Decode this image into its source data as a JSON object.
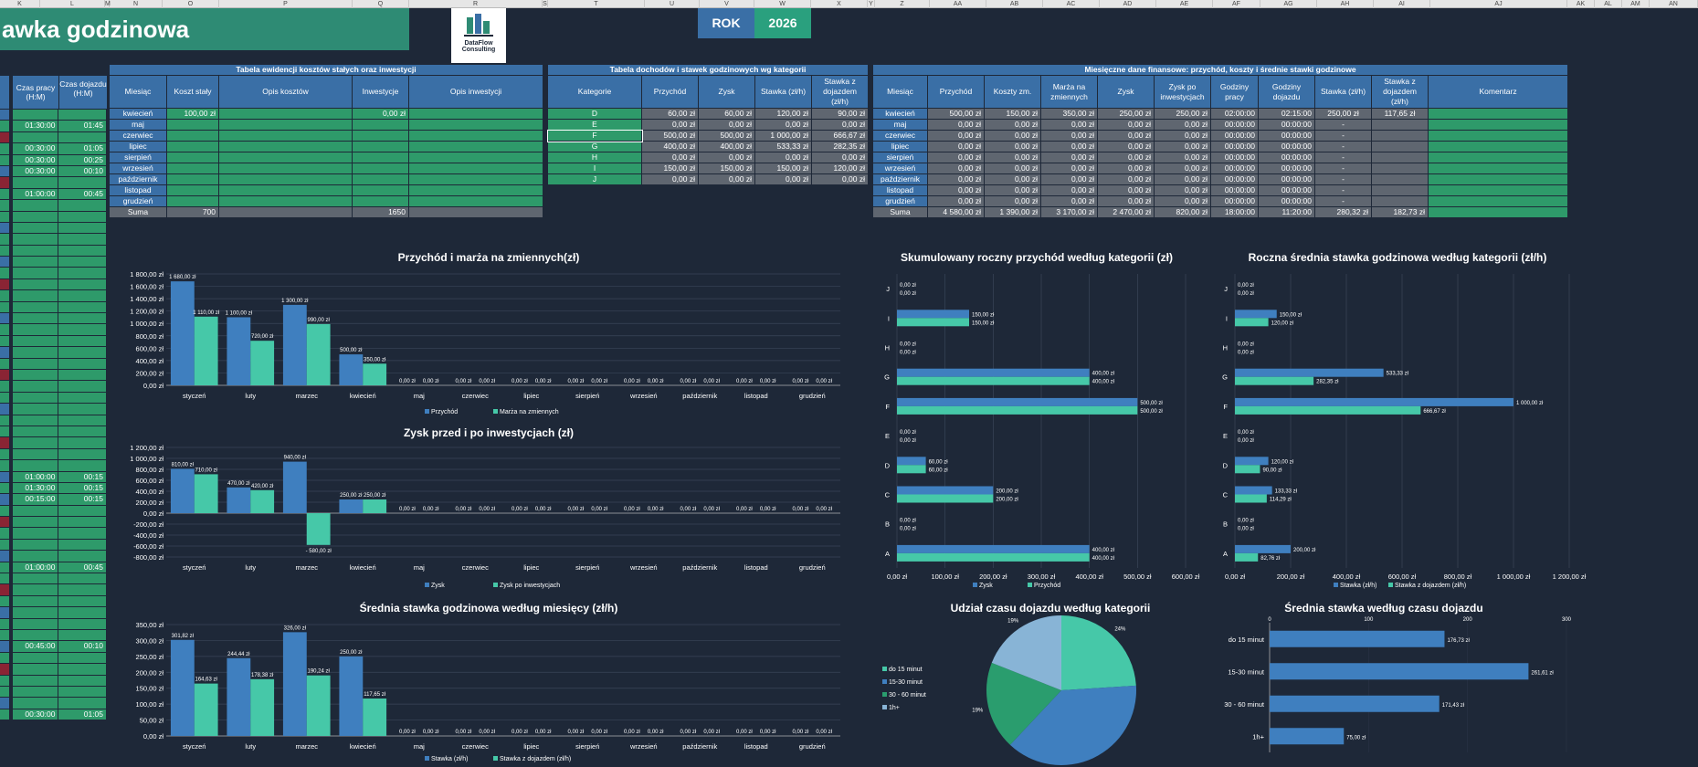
{
  "column_letters": [
    "K",
    "L",
    "M",
    "N",
    "O",
    "P",
    "Q",
    "R",
    "S",
    "T",
    "U",
    "V",
    "W",
    "X",
    "Y",
    "Z",
    "AA",
    "AB",
    "AC",
    "AD",
    "AE",
    "AF",
    "AG",
    "AH",
    "AI",
    "AJ",
    "AK",
    "AL",
    "AM",
    "AN"
  ],
  "title": "awka godzinowa",
  "logo": {
    "line1": "DataFlow",
    "line2": "Consulting"
  },
  "rok": {
    "label": "ROK",
    "value": "2026"
  },
  "left_cols": {
    "h1": "Czas pracy (H:M)",
    "h2": "Czas dojazdu (H:M)"
  },
  "left_rows": [
    {
      "a": "",
      "b": "",
      "c": "blue"
    },
    {
      "a": "01:30:00",
      "b": "01:45",
      "c": "green"
    },
    {
      "a": "",
      "b": "",
      "c": "red"
    },
    {
      "a": "00:30:00",
      "b": "01:05",
      "c": "green"
    },
    {
      "a": "00:30:00",
      "b": "00:25",
      "c": "green"
    },
    {
      "a": "00:30:00",
      "b": "00:10",
      "c": "blue"
    },
    {
      "a": "",
      "b": "",
      "c": "red"
    },
    {
      "a": "01:00:00",
      "b": "00:45",
      "c": "green"
    },
    {
      "a": "",
      "b": "",
      "c": "green"
    },
    {
      "a": "",
      "b": "",
      "c": "green"
    },
    {
      "a": "",
      "b": "",
      "c": "blue"
    },
    {
      "a": "",
      "b": "",
      "c": "green"
    },
    {
      "a": "",
      "b": "",
      "c": "green"
    },
    {
      "a": "",
      "b": "",
      "c": "blue"
    },
    {
      "a": "",
      "b": "",
      "c": "green"
    },
    {
      "a": "",
      "b": "",
      "c": "red"
    },
    {
      "a": "",
      "b": "",
      "c": "green"
    },
    {
      "a": "",
      "b": "",
      "c": "green"
    },
    {
      "a": "",
      "b": "",
      "c": "blue"
    },
    {
      "a": "",
      "b": "",
      "c": "green"
    },
    {
      "a": "",
      "b": "",
      "c": "green"
    },
    {
      "a": "",
      "b": "",
      "c": "blue"
    },
    {
      "a": "",
      "b": "",
      "c": "green"
    },
    {
      "a": "",
      "b": "",
      "c": "red"
    },
    {
      "a": "",
      "b": "",
      "c": "green"
    },
    {
      "a": "",
      "b": "",
      "c": "green"
    },
    {
      "a": "",
      "b": "",
      "c": "blue"
    },
    {
      "a": "",
      "b": "",
      "c": "green"
    },
    {
      "a": "",
      "b": "",
      "c": "green"
    },
    {
      "a": "",
      "b": "",
      "c": "red"
    },
    {
      "a": "",
      "b": "",
      "c": "green"
    },
    {
      "a": "",
      "b": "",
      "c": "green"
    },
    {
      "a": "01:00:00",
      "b": "00:15",
      "c": "blue"
    },
    {
      "a": "01:30:00",
      "b": "00:15",
      "c": "green"
    },
    {
      "a": "00:15:00",
      "b": "00:15",
      "c": "blue"
    },
    {
      "a": "",
      "b": "",
      "c": "green"
    },
    {
      "a": "",
      "b": "",
      "c": "red"
    },
    {
      "a": "",
      "b": "",
      "c": "green"
    },
    {
      "a": "",
      "b": "",
      "c": "green"
    },
    {
      "a": "",
      "b": "",
      "c": "blue"
    },
    {
      "a": "01:00:00",
      "b": "00:45",
      "c": "green"
    },
    {
      "a": "",
      "b": "",
      "c": "green"
    },
    {
      "a": "",
      "b": "",
      "c": "red"
    },
    {
      "a": "",
      "b": "",
      "c": "green"
    },
    {
      "a": "",
      "b": "",
      "c": "blue"
    },
    {
      "a": "",
      "b": "",
      "c": "green"
    },
    {
      "a": "",
      "b": "",
      "c": "green"
    },
    {
      "a": "00:45:00",
      "b": "00:10",
      "c": "blue"
    },
    {
      "a": "",
      "b": "",
      "c": "green"
    },
    {
      "a": "",
      "b": "",
      "c": "red"
    },
    {
      "a": "",
      "b": "",
      "c": "green"
    },
    {
      "a": "",
      "b": "",
      "c": "green"
    },
    {
      "a": "",
      "b": "",
      "c": "blue"
    },
    {
      "a": "00:30:00",
      "b": "01:05",
      "c": "green"
    }
  ],
  "t1": {
    "caption": "Tabela ewidencji kosztów stałych oraz inwestycji",
    "headers": [
      "Miesiąc",
      "Koszt stały",
      "Opis kosztów",
      "Inwestycje",
      "Opis inwestycji"
    ],
    "rows": [
      [
        "kwiecień",
        "100,00 zł",
        "",
        "0,00 zł",
        ""
      ],
      [
        "maj",
        "",
        "",
        "",
        ""
      ],
      [
        "czerwiec",
        "",
        "",
        "",
        ""
      ],
      [
        "lipiec",
        "",
        "",
        "",
        ""
      ],
      [
        "sierpień",
        "",
        "",
        "",
        ""
      ],
      [
        "wrzesień",
        "",
        "",
        "",
        ""
      ],
      [
        "październik",
        "",
        "",
        "",
        ""
      ],
      [
        "listopad",
        "",
        "",
        "",
        ""
      ],
      [
        "grudzień",
        "",
        "",
        "",
        ""
      ]
    ],
    "sum": [
      "Suma",
      "700",
      "",
      "1650",
      ""
    ]
  },
  "t2": {
    "caption": "Tabela dochodów i stawek godzinowych wg kategorii",
    "headers": [
      "Kategorie",
      "Przychód",
      "Zysk",
      "Stawka (zł/h)",
      "Stawka z dojazdem (zł/h)"
    ],
    "rows": [
      [
        "D",
        "60,00 zł",
        "60,00 zł",
        "120,00 zł",
        "90,00 zł"
      ],
      [
        "E",
        "0,00 zł",
        "0,00 zł",
        "0,00 zł",
        "0,00 zł"
      ],
      [
        "F",
        "500,00 zł",
        "500,00 zł",
        "1 000,00 zł",
        "666,67 zł"
      ],
      [
        "G",
        "400,00 zł",
        "400,00 zł",
        "533,33 zł",
        "282,35 zł"
      ],
      [
        "H",
        "0,00 zł",
        "0,00 zł",
        "0,00 zł",
        "0,00 zł"
      ],
      [
        "I",
        "150,00 zł",
        "150,00 zł",
        "150,00 zł",
        "120,00 zł"
      ],
      [
        "J",
        "0,00 zł",
        "0,00 zł",
        "0,00 zł",
        "0,00 zł"
      ]
    ]
  },
  "t3": {
    "caption": "Miesięczne dane finansowe: przychód, koszty i średnie stawki godzinowe",
    "headers": [
      "Miesiąc",
      "Przychód",
      "Koszty zm.",
      "Marża na zmiennych",
      "Zysk",
      "Zysk po inwestycjach",
      "Godziny pracy",
      "Godziny dojazdu",
      "Stawka (zł/h)",
      "Stawka z dojazdem (zł/h)",
      "Komentarz"
    ],
    "rows": [
      [
        "kwiecień",
        "500,00 zł",
        "150,00 zł",
        "350,00 zł",
        "250,00 zł",
        "250,00 zł",
        "02:00:00",
        "02:15:00",
        "250,00 zł",
        "117,65 zł",
        ""
      ],
      [
        "maj",
        "0,00 zł",
        "0,00 zł",
        "0,00 zł",
        "0,00 zł",
        "0,00 zł",
        "00:00:00",
        "00:00:00",
        "-",
        "",
        ""
      ],
      [
        "czerwiec",
        "0,00 zł",
        "0,00 zł",
        "0,00 zł",
        "0,00 zł",
        "0,00 zł",
        "00:00:00",
        "00:00:00",
        "-",
        "",
        ""
      ],
      [
        "lipiec",
        "0,00 zł",
        "0,00 zł",
        "0,00 zł",
        "0,00 zł",
        "0,00 zł",
        "00:00:00",
        "00:00:00",
        "-",
        "",
        ""
      ],
      [
        "sierpień",
        "0,00 zł",
        "0,00 zł",
        "0,00 zł",
        "0,00 zł",
        "0,00 zł",
        "00:00:00",
        "00:00:00",
        "-",
        "",
        ""
      ],
      [
        "wrzesień",
        "0,00 zł",
        "0,00 zł",
        "0,00 zł",
        "0,00 zł",
        "0,00 zł",
        "00:00:00",
        "00:00:00",
        "-",
        "",
        ""
      ],
      [
        "październik",
        "0,00 zł",
        "0,00 zł",
        "0,00 zł",
        "0,00 zł",
        "0,00 zł",
        "00:00:00",
        "00:00:00",
        "-",
        "",
        ""
      ],
      [
        "listopad",
        "0,00 zł",
        "0,00 zł",
        "0,00 zł",
        "0,00 zł",
        "0,00 zł",
        "00:00:00",
        "00:00:00",
        "-",
        "",
        ""
      ],
      [
        "grudzień",
        "0,00 zł",
        "0,00 zł",
        "0,00 zł",
        "0,00 zł",
        "0,00 zł",
        "00:00:00",
        "00:00:00",
        "-",
        "",
        ""
      ]
    ],
    "sum": [
      "Suma",
      "4 580,00 zł",
      "1 390,00 zł",
      "3 170,00 zł",
      "2 470,00 zł",
      "820,00 zł",
      "18:00:00",
      "11:20:00",
      "280,32 zł",
      "182,73 zł",
      ""
    ]
  },
  "colors": {
    "blue": "#3f7fbf",
    "green": "#46c8a8",
    "dgreen": "#2a9d6e",
    "lblue": "#88b4d6"
  },
  "chart_data": [
    {
      "id": "c1",
      "type": "bar",
      "title": "Przychód i marża na zmiennych(zł)",
      "categories": [
        "styczeń",
        "luty",
        "marzec",
        "kwiecień",
        "maj",
        "czerwiec",
        "lipiec",
        "sierpień",
        "wrzesień",
        "październik",
        "listopad",
        "grudzień"
      ],
      "series": [
        {
          "name": "Przychód",
          "values": [
            1680,
            1100,
            1300,
            500,
            0,
            0,
            0,
            0,
            0,
            0,
            0,
            0
          ]
        },
        {
          "name": "Marża na zmiennych",
          "values": [
            1110,
            720,
            990,
            350,
            0,
            0,
            0,
            0,
            0,
            0,
            0,
            0
          ]
        }
      ],
      "ticks": [
        "0,00 zł",
        "200,00 zł",
        "400,00 zł",
        "600,00 zł",
        "800,00 zł",
        "1 000,00 zł",
        "1 200,00 zł",
        "1 400,00 zł",
        "1 600,00 zł",
        "1 800,00 zł"
      ],
      "labels": [
        [
          "1 680,00 zł",
          "1 100,00 zł",
          "1 300,00 zł",
          "500,00 zł",
          "0,00 zł",
          "0,00 zł",
          "0,00 zł",
          "0,00 zł",
          "0,00 zł",
          "0,00 zł",
          "0,00 zł",
          "0,00 zł"
        ],
        [
          "1 110,00 zł",
          "720,00 zł",
          "990,00 zł",
          "350,00 zł",
          "0,00 zł",
          "0,00 zł",
          "0,00 zł",
          "0,00 zł",
          "0,00 zł",
          "0,00 zł",
          "0,00 zł",
          "0,00 zł"
        ]
      ],
      "ylim": [
        0,
        1800
      ]
    },
    {
      "id": "c2",
      "type": "bar",
      "title": "Zysk przed i po inwestycjach (zł)",
      "categories": [
        "styczeń",
        "luty",
        "marzec",
        "kwiecień",
        "maj",
        "czerwiec",
        "lipiec",
        "sierpień",
        "wrzesień",
        "październik",
        "listopad",
        "grudzień"
      ],
      "series": [
        {
          "name": "Zysk",
          "values": [
            810,
            470,
            940,
            250,
            0,
            0,
            0,
            0,
            0,
            0,
            0,
            0
          ]
        },
        {
          "name": "Zysk po inwestycjach",
          "values": [
            710,
            420,
            -580,
            250,
            0,
            0,
            0,
            0,
            0,
            0,
            0,
            0
          ]
        }
      ],
      "ticks": [
        "-800,00 zł",
        "-600,00 zł",
        "-400,00 zł",
        "-200,00 zł",
        "0,00 zł",
        "200,00 zł",
        "400,00 zł",
        "600,00 zł",
        "800,00 zł",
        "1 000,00 zł",
        "1 200,00 zł"
      ],
      "labels": [
        [
          "810,00 zł",
          "470,00 zł",
          "940,00 zł",
          "250,00 zł",
          "0,00 zł",
          "0,00 zł",
          "0,00 zł",
          "0,00 zł",
          "0,00 zł",
          "0,00 zł",
          "0,00 zł",
          "0,00 zł"
        ],
        [
          "710,00 zł",
          "420,00 zł",
          "- 580,00 zł",
          "250,00 zł",
          "0,00 zł",
          "0,00 zł",
          "0,00 zł",
          "0,00 zł",
          "0,00 zł",
          "0,00 zł",
          "0,00 zł",
          "0,00 zł"
        ]
      ],
      "ylim": [
        -800,
        1200
      ]
    },
    {
      "id": "c3",
      "type": "bar",
      "title": "Średnia stawka godzinowa według miesięcy (zł/h)",
      "categories": [
        "styczeń",
        "luty",
        "marzec",
        "kwiecień",
        "maj",
        "czerwiec",
        "lipiec",
        "sierpień",
        "wrzesień",
        "październik",
        "listopad",
        "grudzień"
      ],
      "series": [
        {
          "name": "Stawka (zł/h)",
          "values": [
            301.82,
            244.44,
            326,
            250,
            0,
            0,
            0,
            0,
            0,
            0,
            0,
            0
          ]
        },
        {
          "name": "Stawka z dojazdem (zł/h)",
          "values": [
            164.63,
            178.38,
            190.24,
            117.65,
            0,
            0,
            0,
            0,
            0,
            0,
            0,
            0
          ]
        }
      ],
      "ticks": [
        "0,00 zł",
        "50,00 zł",
        "100,00 zł",
        "150,00 zł",
        "200,00 zł",
        "250,00 zł",
        "300,00 zł",
        "350,00 zł"
      ],
      "labels": [
        [
          "301,82 zł",
          "244,44 zł",
          "326,00 zł",
          "250,00 zł",
          "0,00 zł",
          "0,00 zł",
          "0,00 zł",
          "0,00 zł",
          "0,00 zł",
          "0,00 zł",
          "0,00 zł",
          "0,00 zł"
        ],
        [
          "164,63 zł",
          "178,38 zł",
          "190,24 zł",
          "117,65 zł",
          "0,00 zł",
          "0,00 zł",
          "0,00 zł",
          "0,00 zł",
          "0,00 zł",
          "0,00 zł",
          "0,00 zł",
          "0,00 zł"
        ]
      ],
      "ylim": [
        0,
        350
      ]
    },
    {
      "id": "c4",
      "type": "hbar",
      "title": "Skumulowany roczny przychód według kategorii (zł)",
      "categories": [
        "A",
        "B",
        "C",
        "D",
        "E",
        "F",
        "G",
        "H",
        "I",
        "J"
      ],
      "series": [
        {
          "name": "Zysk",
          "values": [
            400,
            0,
            200,
            60,
            0,
            500,
            400,
            0,
            150,
            0
          ]
        },
        {
          "name": "Przychód",
          "values": [
            400,
            0,
            200,
            60,
            0,
            500,
            400,
            0,
            150,
            0
          ]
        }
      ],
      "labels": [
        [
          "400,00 zł",
          "0,00 zł",
          "200,00 zł",
          "60,00 zł",
          "0,00 zł",
          "500,00 zł",
          "400,00 zł",
          "0,00 zł",
          "150,00 zł",
          "0,00 zł"
        ],
        [
          "400,00 zł",
          "0,00 zł",
          "200,00 zł",
          "60,00 zł",
          "0,00 zł",
          "500,00 zł",
          "400,00 zł",
          "0,00 zł",
          "150,00 zł",
          "0,00 zł"
        ]
      ],
      "ticks": [
        "0,00 zł",
        "100,00 zł",
        "200,00 zł",
        "300,00 zł",
        "400,00 zł",
        "500,00 zł",
        "600,00 zł"
      ],
      "xlim": [
        0,
        600
      ]
    },
    {
      "id": "c5",
      "type": "hbar",
      "title": "Roczna średnia stawka godzinowa według kategorii (zł/h)",
      "categories": [
        "A",
        "B",
        "C",
        "D",
        "E",
        "F",
        "G",
        "H",
        "I",
        "J"
      ],
      "series": [
        {
          "name": "Stawka (zł/h)",
          "values": [
            200,
            0,
            133.33,
            120,
            0,
            1000,
            533.33,
            0,
            150,
            0
          ]
        },
        {
          "name": "Stawka z dojazdem (zł/h)",
          "values": [
            82.76,
            0,
            114.29,
            90,
            0,
            666.67,
            282.35,
            0,
            120,
            0
          ]
        }
      ],
      "labels": [
        [
          "200,00 zł",
          "0,00 zł",
          "133,33 zł",
          "120,00 zł",
          "0,00 zł",
          "1 000,00 zł",
          "533,33 zł",
          "0,00 zł",
          "150,00 zł",
          "0,00 zł"
        ],
        [
          "82,76 zł",
          "0,00 zł",
          "114,29 zł",
          "90,00 zł",
          "0,00 zł",
          "666,67 zł",
          "282,35 zł",
          "0,00 zł",
          "120,00 zł",
          "0,00 zł"
        ]
      ],
      "ticks": [
        "0,00 zł",
        "200,00 zł",
        "400,00 zł",
        "600,00 zł",
        "800,00 zł",
        "1 000,00 zł",
        "1 200,00 zł"
      ],
      "xlim": [
        0,
        1200
      ]
    },
    {
      "id": "c6",
      "type": "pie",
      "title": "Udział czasu dojazdu według kategorii",
      "categories": [
        "do 15 minut",
        "15-30 minut",
        "30 - 60 minut",
        "1h+"
      ],
      "values": [
        24,
        38,
        19,
        19
      ],
      "labels": [
        "24%",
        "",
        "19%",
        "19%"
      ]
    },
    {
      "id": "c7",
      "type": "hbar",
      "title": "Średnia stawka według czasu dojazdu",
      "categories": [
        "1h+",
        "30 - 60 minut",
        "15-30 minut",
        "do 15 minut"
      ],
      "values": [
        75,
        171.43,
        261.61,
        176.73
      ],
      "labels": [
        "75,00 zł",
        "171,43 zł",
        "261,61 zł",
        "176,73 zł"
      ],
      "top_ticks": [
        "0",
        "100",
        "200",
        "300"
      ],
      "xlim": [
        0,
        300
      ]
    }
  ]
}
